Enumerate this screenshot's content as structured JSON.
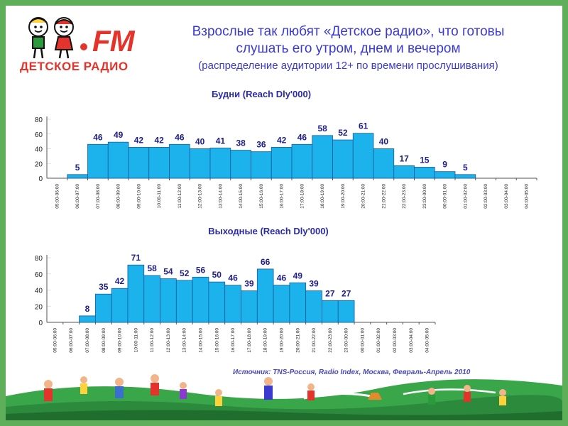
{
  "logo": {
    "mark": "FM",
    "name": "ДЕТСКОЕ РАДИО"
  },
  "header": {
    "title_line1": "Взрослые так любят «Детское радио», что готовы",
    "title_line2": "слушать его утром, днем и вечером",
    "subtitle": "(распределение аудитории 12+ по времени прослушивания)"
  },
  "source": "Источник: TNS-Россия, Radio Index, Москва, Февраль-Апрель 2010",
  "chart_data": [
    {
      "type": "bar",
      "title": "Будни (Reach Dly'000)",
      "ylim": [
        0,
        80
      ],
      "yticks": [
        0,
        20,
        40,
        60,
        80
      ],
      "categories": [
        "05:00-06:00",
        "06:00-07:00",
        "07:00-08:00",
        "08:00-09:00",
        "09:00-10:00",
        "10:00-11:00",
        "11:00-12:00",
        "12:00-13:00",
        "13:00-14:00",
        "14:00-15:00",
        "15:00-16:00",
        "16:00-17:00",
        "17:00-18:00",
        "18:00-19:00",
        "19:00-20:00",
        "20:00-21:00",
        "21:00-22:00",
        "22:00-23:00",
        "23:00-00:00",
        "00:00-01:00",
        "01:00-02:00",
        "02:00-03:00",
        "03:00-04:00",
        "04:00-05:00"
      ],
      "values": [
        null,
        5,
        46,
        49,
        42,
        42,
        46,
        40,
        41,
        38,
        36,
        42,
        46,
        58,
        52,
        61,
        40,
        17,
        15,
        9,
        5,
        null,
        null,
        null
      ],
      "grid": true
    },
    {
      "type": "bar",
      "title": "Выходные (Reach Dly'000)",
      "ylim": [
        0,
        80
      ],
      "yticks": [
        0,
        20,
        40,
        60,
        80
      ],
      "categories": [
        "05:00-06:00",
        "06:00-07:00",
        "07:00-08:00",
        "08:00-09:00",
        "09:00-10:00",
        "10:00-11:00",
        "11:00-12:00",
        "12:00-13:00",
        "13:00-14:00",
        "14:00-15:00",
        "15:00-16:00",
        "16:00-17:00",
        "17:00-18:00",
        "18:00-19:00",
        "19:00-20:00",
        "20:00-21:00",
        "21:00-22:00",
        "22:00-23:00",
        "23:00-00:00",
        "00:00-01:00",
        "01:00-02:00",
        "02:00-03:00",
        "03:00-04:00",
        "04:00-05:00"
      ],
      "values": [
        null,
        null,
        8,
        35,
        42,
        71,
        58,
        54,
        52,
        56,
        50,
        46,
        39,
        66,
        46,
        49,
        39,
        27,
        27,
        null,
        null,
        null,
        null,
        null
      ],
      "grid": true
    }
  ],
  "colors": {
    "bar": "#1cb2ec",
    "title": "#3a3ad0",
    "logo": "#e4332b"
  }
}
